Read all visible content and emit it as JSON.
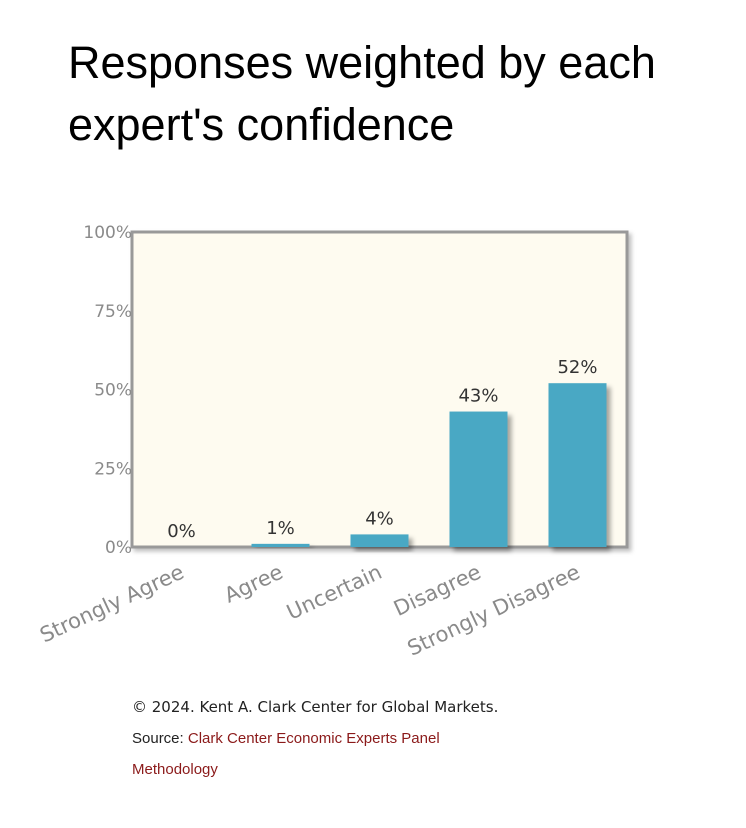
{
  "title": "Responses weighted by each expert's confidence",
  "chart_data": {
    "type": "bar",
    "title": "Responses weighted by each expert's confidence",
    "categories": [
      "Strongly Agree",
      "Agree",
      "Uncertain",
      "Disagree",
      "Strongly Disagree"
    ],
    "values": [
      0,
      1,
      4,
      43,
      52
    ],
    "value_labels": [
      "0%",
      "1%",
      "4%",
      "43%",
      "52%"
    ],
    "ylim": [
      0,
      100
    ],
    "yticks": [
      0,
      25,
      50,
      75,
      100
    ],
    "ytick_labels": [
      "0%",
      "25%",
      "50%",
      "75%",
      "100%"
    ],
    "xlabel": "",
    "ylabel": "",
    "grid": false,
    "colors": {
      "bar": "#4aa8c4",
      "plot_bg": "#fefbf0",
      "frame": "#999999",
      "tick_text": "#8a8a8a"
    }
  },
  "footer": {
    "copyright": "© 2024. Kent A. Clark Center for Global Markets.",
    "source_prefix": "Source: ",
    "source_link": "Clark Center Economic Experts Panel",
    "methodology_link": "Methodology",
    "link_color": "#8b1a1a"
  }
}
